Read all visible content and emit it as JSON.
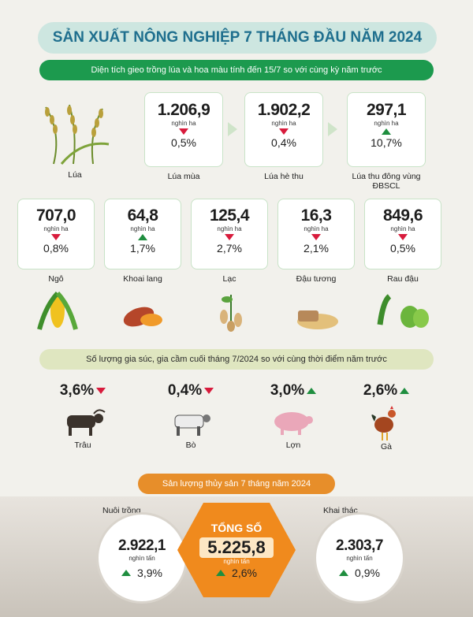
{
  "title": "SẢN XUẤT NÔNG NGHIỆP 7 THÁNG ĐẦU NĂM 2024",
  "section1": "Diện tích gieo trồng lúa và hoa màu tính đến 15/7 so với cùng kỳ năm trước",
  "rice_label": "Lúa",
  "rice_cards": [
    {
      "value": "1.206,9",
      "unit": "nghìn ha",
      "pct": "0,5%",
      "trend": "down",
      "label": "Lúa mùa"
    },
    {
      "value": "1.902,2",
      "unit": "nghìn ha",
      "pct": "0,4%",
      "trend": "down",
      "label": "Lúa hè thu"
    },
    {
      "value": "297,1",
      "unit": "nghìn ha",
      "pct": "10,7%",
      "trend": "up",
      "label": "Lúa thu đông vùng ĐBSCL"
    }
  ],
  "crop_cards": [
    {
      "value": "707,0",
      "unit": "nghìn ha",
      "pct": "0,8%",
      "trend": "down",
      "label": "Ngô"
    },
    {
      "value": "64,8",
      "unit": "nghìn ha",
      "pct": "1,7%",
      "trend": "up",
      "label": "Khoai lang"
    },
    {
      "value": "125,4",
      "unit": "nghìn ha",
      "pct": "2,7%",
      "trend": "down",
      "label": "Lạc"
    },
    {
      "value": "16,3",
      "unit": "nghìn ha",
      "pct": "2,1%",
      "trend": "down",
      "label": "Đậu tương"
    },
    {
      "value": "849,6",
      "unit": "nghìn ha",
      "pct": "0,5%",
      "trend": "down",
      "label": "Rau đậu"
    }
  ],
  "section2": "Số lượng gia súc, gia cầm cuối tháng 7/2024 so với cùng thời điểm năm trước",
  "livestock": [
    {
      "pct": "3,6%",
      "trend": "down",
      "label": "Trâu"
    },
    {
      "pct": "0,4%",
      "trend": "down",
      "label": "Bò"
    },
    {
      "pct": "3,0%",
      "trend": "up",
      "label": "Lợn"
    },
    {
      "pct": "2,6%",
      "trend": "up",
      "label": "Gà"
    }
  ],
  "section3": "Sản lượng thủy sản 7 tháng năm 2024",
  "fishery": {
    "farming": {
      "label": "Nuôi trồng",
      "value": "2.922,1",
      "unit": "nghìn tấn",
      "pct": "3,9%",
      "trend": "up"
    },
    "total": {
      "label": "TỔNG SỐ",
      "value": "5.225,8",
      "unit": "nghìn tấn",
      "pct": "2,6%",
      "trend": "up"
    },
    "catching": {
      "label": "Khai thác",
      "value": "2.303,7",
      "unit": "nghìn tấn",
      "pct": "0,9%",
      "trend": "up"
    }
  },
  "colors": {
    "green": "#1c9a4e",
    "orange": "#f08a1d",
    "down": "#d81b3c",
    "up": "#1f8e3f"
  }
}
